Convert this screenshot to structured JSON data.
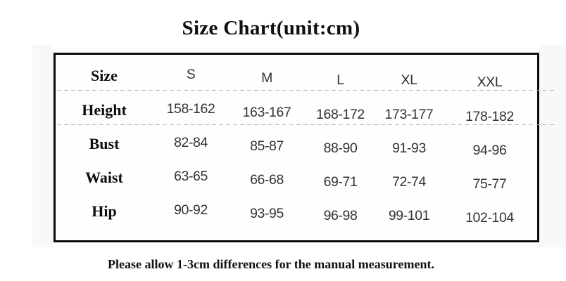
{
  "title": "Size Chart(unit:cm)",
  "footer_note": "Please allow 1-3cm differences for the manual measurement.",
  "chart_data": {
    "type": "table",
    "title": "Size Chart(unit:cm)",
    "unit": "cm",
    "columns": [
      "Size",
      "S",
      "M",
      "L",
      "XL",
      "XXL"
    ],
    "rows": [
      {
        "label": "Height",
        "values": [
          "158-162",
          "163-167",
          "168-172",
          "173-177",
          "178-182"
        ]
      },
      {
        "label": "Bust",
        "values": [
          "82-84",
          "85-87",
          "88-90",
          "91-93",
          "94-96"
        ]
      },
      {
        "label": "Waist",
        "values": [
          "63-65",
          "66-68",
          "69-71",
          "72-74",
          "75-77"
        ]
      },
      {
        "label": "Hip",
        "values": [
          "90-92",
          "93-95",
          "96-98",
          "99-101",
          "102-104"
        ]
      }
    ],
    "note": "Please allow 1-3cm differences for the manual measurement.",
    "layout": {
      "separators_under_rows": [
        "Size",
        "Height"
      ],
      "legend_position": "none",
      "grid": "partial-dashed"
    }
  },
  "colors": {
    "table_border": "#0c0c0c",
    "dashed_line": "#b7b7b7",
    "label_text": "#0e0e0e",
    "value_text": "#333333",
    "background": "#ffffff",
    "side_strip": "#f8f8f8"
  }
}
